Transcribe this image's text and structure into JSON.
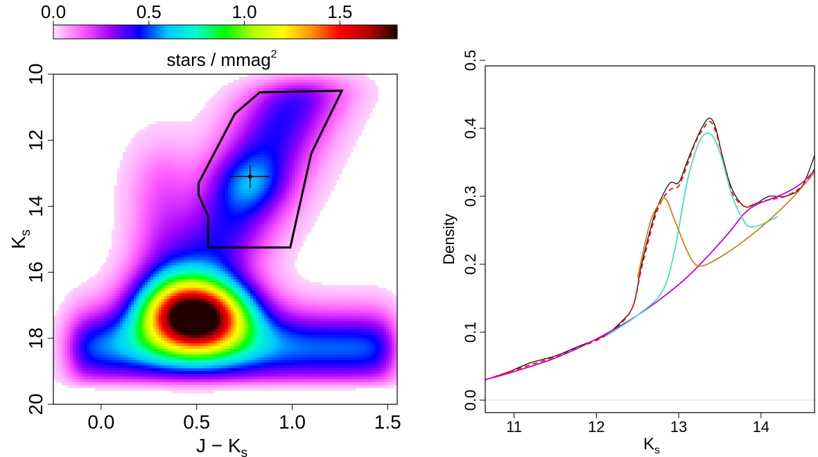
{
  "chart_data": [
    {
      "type": "heatmap",
      "xlabel": "J − K",
      "xlabel_sub": "s",
      "ylabel": "K",
      "ylabel_sub": "s",
      "xlim": [
        -0.25,
        1.55
      ],
      "ylim": [
        20,
        10
      ],
      "x_ticks": [
        "0.0",
        "0.5",
        "1.0",
        "1.5"
      ],
      "x_tick_values": [
        0.0,
        0.5,
        1.0,
        1.5
      ],
      "y_ticks": [
        "10",
        "12",
        "14",
        "16",
        "18",
        "20"
      ],
      "y_tick_values": [
        10,
        12,
        14,
        16,
        18,
        20
      ],
      "colorbar": {
        "label": "stars / mmag",
        "label_sup": "2",
        "ticks": [
          "0.0",
          "0.5",
          "1.0",
          "1.5"
        ],
        "tick_values": [
          0.0,
          0.5,
          1.0,
          1.5
        ],
        "range": [
          0.0,
          1.8
        ],
        "colors": [
          "#ffe3ff",
          "#ff5cff",
          "#a000ff",
          "#0000ff",
          "#00c8ff",
          "#00ffc8",
          "#00ff00",
          "#b4ff00",
          "#ffff00",
          "#ff9600",
          "#ff0000",
          "#b40000",
          "#230000"
        ]
      },
      "selection_polygon": [
        [
          0.51,
          13.3
        ],
        [
          0.7,
          11.2
        ],
        [
          0.83,
          10.55
        ],
        [
          1.26,
          10.5
        ],
        [
          1.1,
          12.4
        ],
        [
          0.99,
          15.25
        ],
        [
          0.56,
          15.25
        ],
        [
          0.56,
          14.3
        ],
        [
          0.51,
          13.65
        ]
      ],
      "marker": {
        "x": 0.78,
        "y": 13.1,
        "x_err": 0.1,
        "y_err": 0.35
      },
      "density_peaks": [
        {
          "x": 0.5,
          "y": 17.3,
          "peak": 1.8
        },
        {
          "x": 0.78,
          "y": 13.3,
          "peak": 0.5
        }
      ]
    },
    {
      "type": "line",
      "xlabel": "K",
      "xlabel_sub": "s",
      "ylabel": "Density",
      "xlim": [
        10.65,
        14.65
      ],
      "ylim": [
        0,
        0.5
      ],
      "x_ticks": [
        "11",
        "12",
        "13",
        "14"
      ],
      "x_tick_values": [
        11,
        12,
        13,
        14
      ],
      "y_ticks": [
        "0.0",
        "0.1",
        "0.2",
        "0.3",
        "0.4",
        "0.5"
      ],
      "y_tick_values": [
        0.0,
        0.1,
        0.2,
        0.3,
        0.4,
        0.5
      ],
      "series": [
        {
          "color": "#000000",
          "style": "solid",
          "x": [
            10.65,
            10.9,
            11.2,
            11.5,
            11.8,
            12.1,
            12.3,
            12.45,
            12.55,
            12.7,
            12.8,
            12.9,
            13.0,
            13.1,
            13.2,
            13.3,
            13.38,
            13.45,
            13.55,
            13.65,
            13.8,
            13.95,
            14.1,
            14.3,
            14.5,
            14.65
          ],
          "y": [
            0.03,
            0.04,
            0.055,
            0.065,
            0.08,
            0.095,
            0.115,
            0.14,
            0.2,
            0.27,
            0.3,
            0.32,
            0.32,
            0.35,
            0.38,
            0.405,
            0.415,
            0.4,
            0.35,
            0.31,
            0.285,
            0.29,
            0.3,
            0.3,
            0.315,
            0.36
          ]
        },
        {
          "color": "#ff0000",
          "style": "dashed",
          "x": [
            10.65,
            10.9,
            11.2,
            11.5,
            11.8,
            12.1,
            12.3,
            12.45,
            12.55,
            12.7,
            12.8,
            12.9,
            13.0,
            13.1,
            13.2,
            13.3,
            13.38,
            13.45,
            13.55,
            13.65,
            13.8,
            13.95,
            14.1,
            14.3,
            14.5,
            14.65
          ],
          "y": [
            0.03,
            0.04,
            0.052,
            0.064,
            0.078,
            0.094,
            0.113,
            0.14,
            0.195,
            0.265,
            0.295,
            0.31,
            0.315,
            0.345,
            0.378,
            0.4,
            0.41,
            0.395,
            0.35,
            0.305,
            0.285,
            0.29,
            0.295,
            0.3,
            0.315,
            0.34
          ]
        },
        {
          "color": "#cc00cc",
          "style": "solid",
          "x": [
            10.65,
            11.0,
            11.5,
            12.0,
            12.5,
            13.0,
            13.3,
            13.6,
            13.8,
            13.95,
            14.1,
            14.3,
            14.5,
            14.65
          ],
          "y": [
            0.03,
            0.042,
            0.062,
            0.09,
            0.125,
            0.17,
            0.205,
            0.245,
            0.275,
            0.288,
            0.295,
            0.305,
            0.32,
            0.338
          ]
        },
        {
          "color": "#40e0c0",
          "style": "solid",
          "x": [
            12.1,
            12.5,
            12.8,
            12.95,
            13.1,
            13.25,
            13.38,
            13.5,
            13.65,
            13.8,
            13.88,
            14.0,
            14.2
          ],
          "y": [
            0.093,
            0.125,
            0.16,
            0.22,
            0.32,
            0.38,
            0.392,
            0.365,
            0.3,
            0.262,
            0.255,
            0.258,
            0.27
          ]
        },
        {
          "color": "#d2811a",
          "style": "solid",
          "x": [
            12.5,
            12.65,
            12.78,
            12.85,
            12.95,
            13.1,
            13.2,
            13.3,
            13.5,
            13.8,
            14.1,
            14.4,
            14.65
          ],
          "y": [
            0.18,
            0.26,
            0.292,
            0.295,
            0.265,
            0.22,
            0.2,
            0.198,
            0.21,
            0.235,
            0.265,
            0.3,
            0.335
          ]
        }
      ]
    }
  ]
}
